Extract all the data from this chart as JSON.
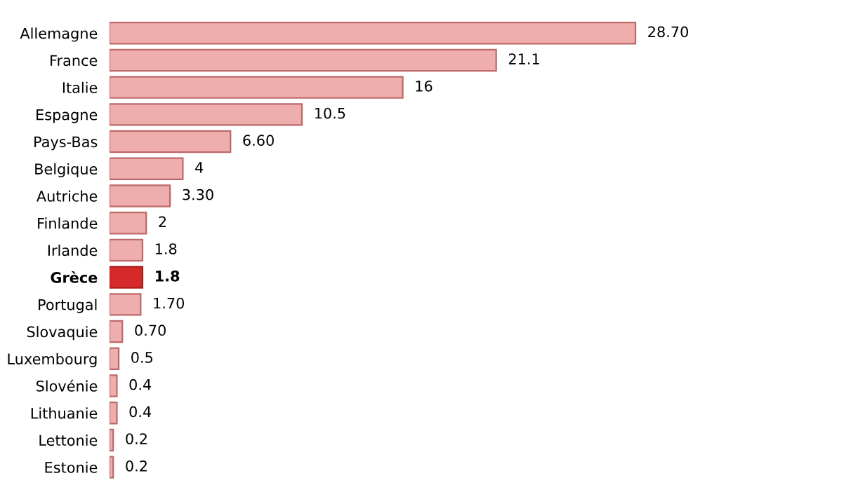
{
  "chart_data": {
    "type": "bar",
    "orientation": "horizontal",
    "categories": [
      "Allemagne",
      "France",
      "Italie",
      "Espagne",
      "Pays-Bas",
      "Belgique",
      "Autriche",
      "Finlande",
      "Irlande",
      "Grèce",
      "Portugal",
      "Slovaquie",
      "Luxembourg",
      "Slovénie",
      "Lithuanie",
      "Lettonie",
      "Estonie"
    ],
    "values": [
      28.7,
      21.1,
      16,
      10.5,
      6.6,
      4,
      3.3,
      2,
      1.8,
      1.8,
      1.7,
      0.7,
      0.5,
      0.4,
      0.4,
      0.2,
      0.2
    ],
    "value_labels": [
      "28.70",
      "21.1",
      "16",
      "10.5",
      "6.60",
      "4",
      "3.30",
      "2",
      "1.8",
      "1.8",
      "1.70",
      "0.70",
      "0.5",
      "0.4",
      "0.4",
      "0.2",
      "0.2"
    ],
    "colors": [
      "#eeaeae",
      "#eeaeae",
      "#eeaeae",
      "#eeaeae",
      "#eeaeae",
      "#eeaeae",
      "#eeaeae",
      "#eeaeae",
      "#eeaeae",
      "#d62a2a",
      "#eeaeae",
      "#eeaeae",
      "#eeaeae",
      "#eeaeae",
      "#eeaeae",
      "#eeaeae",
      "#eeaeae"
    ],
    "grid": false,
    "legend": false
  }
}
